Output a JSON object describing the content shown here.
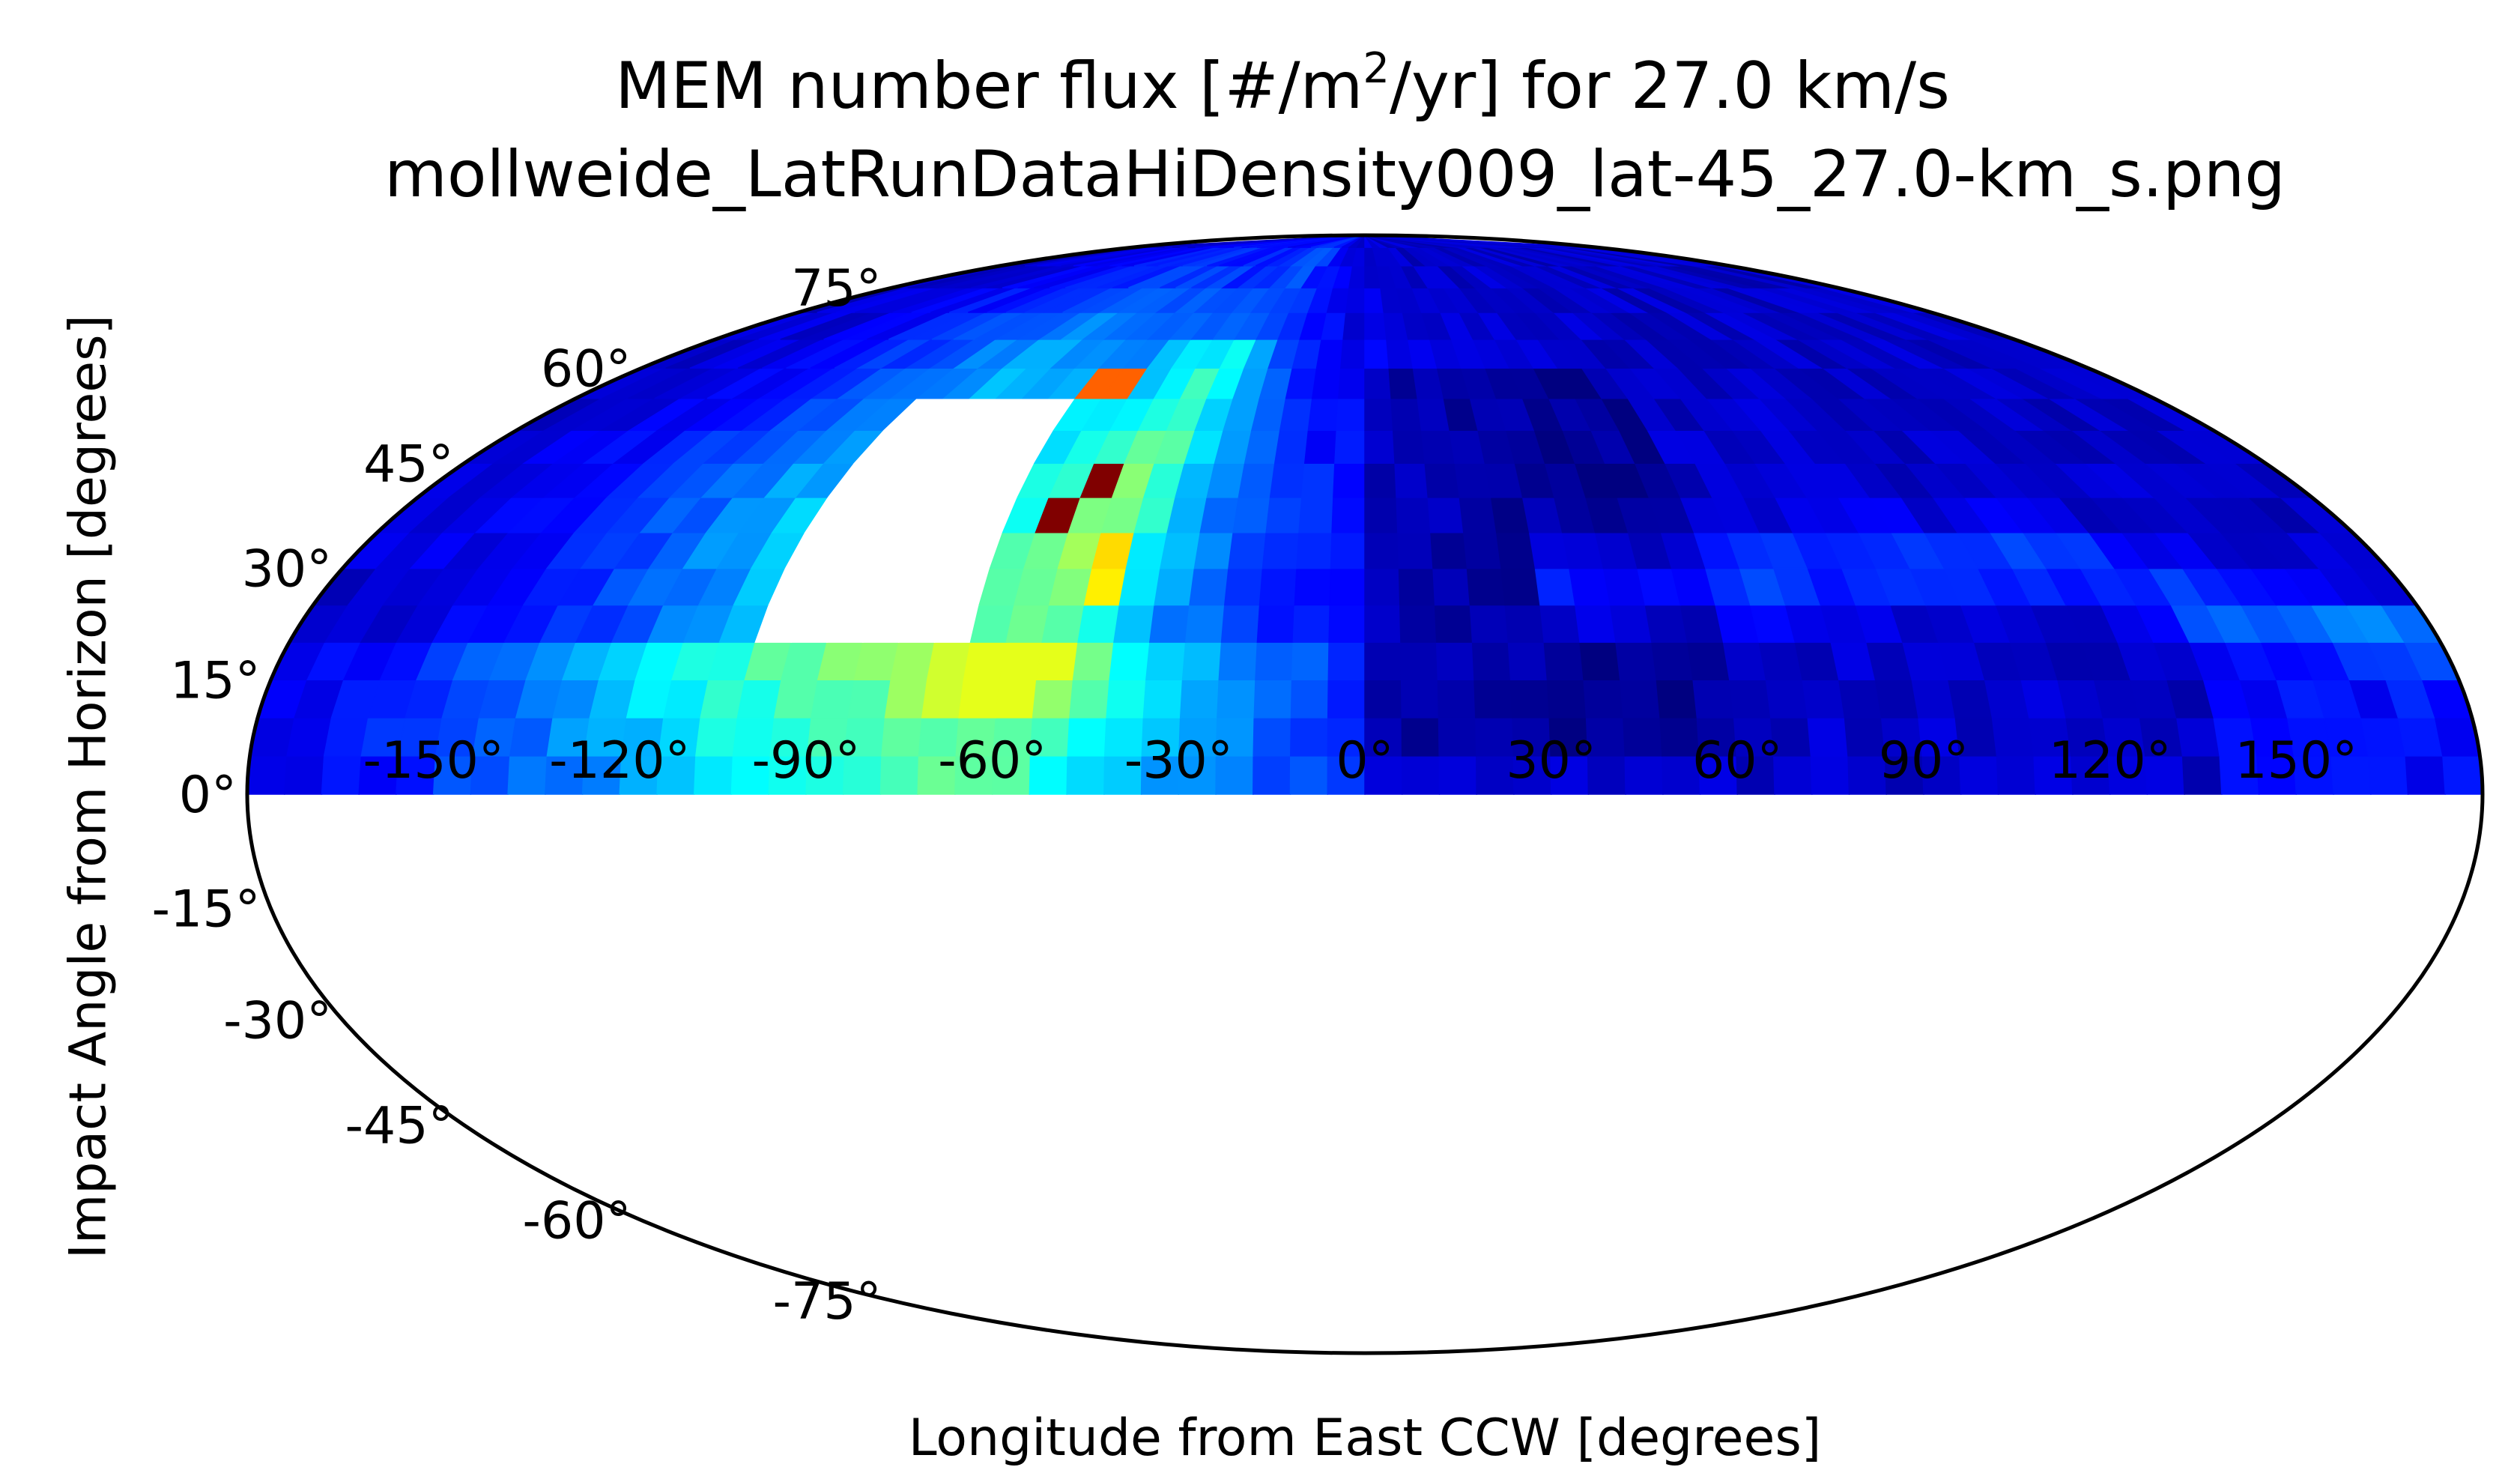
{
  "chart": {
    "title_main": "MEM number flux [#/m",
    "title_sup": "2",
    "title_tail": "/yr] for 27.0 km/s",
    "subtitle": "mollweide_LatRunDataHiDensity009_lat-45_27.0-km_s.png",
    "xlabel": "Longitude from East CCW [degrees]",
    "ylabel": "Impact Angle from Horizon [degrees]"
  },
  "chart_data": {
    "type": "heatmap",
    "projection": "mollweide",
    "title": "MEM number flux [#/m2/yr] for 27.0 km/s",
    "subtitle": "mollweide_LatRunDataHiDensity009_lat-45_27.0-km_s.png",
    "xlabel": "Longitude from East CCW [degrees]",
    "ylabel": "Impact Angle from Horizon [degrees]",
    "xlim": [
      -180,
      180
    ],
    "ylim": [
      -90,
      90
    ],
    "grid": false,
    "colormap": "jet",
    "x_ticks": [
      -150,
      -120,
      -90,
      -60,
      -30,
      0,
      30,
      60,
      90,
      120,
      150
    ],
    "x_tick_labels": [
      "-150°",
      "-120°",
      "-90°",
      "-60°",
      "-30°",
      "0°",
      "30°",
      "60°",
      "90°",
      "120°",
      "150°"
    ],
    "y_ticks": [
      75,
      60,
      45,
      30,
      15,
      0,
      -15,
      -30,
      -45,
      -60,
      -75
    ],
    "y_tick_labels": [
      "75°",
      "60°",
      "45°",
      "30°",
      "15°",
      "0°",
      "-15°",
      "-30°",
      "-45°",
      "-60°",
      "-75°"
    ],
    "lon_bin_deg": 6,
    "lat_bin_deg": 5,
    "lat_centers": [
      2.5,
      7.5,
      12.5,
      17.5,
      22.5,
      27.5,
      32.5,
      37.5,
      42.5,
      47.5,
      52.5,
      57.5,
      62.5,
      67.5,
      72.5,
      77.5,
      82.5,
      87.5
    ],
    "data_coverage": "impact angle 0° to 90° only; lower hemisphere empty",
    "saturated_region": {
      "lon_min": -102,
      "lon_max": -66,
      "lat_min": 20,
      "lat_max": 55,
      "color": "#ffffff"
    },
    "peak_cells": [
      {
        "lon": -57,
        "lat": 37.5,
        "level": 1.0
      },
      {
        "lon": -51,
        "lat": 42.5,
        "level": 1.0
      },
      {
        "lon": -63,
        "lat": 57.5,
        "level": 0.78
      },
      {
        "lon": -57,
        "lat": 57.5,
        "level": 0.78
      },
      {
        "lon": -81,
        "lat": 22.5,
        "level": 0.72
      },
      {
        "lon": -45,
        "lat": 32.5,
        "level": 0.66
      },
      {
        "lon": -45,
        "lat": 27.5,
        "level": 0.64
      }
    ],
    "features": {
      "nose_lon": -75,
      "nose_lat": 35,
      "secondary_arc_lon_range": [
        30,
        180
      ],
      "secondary_arc_lat": 30
    }
  }
}
